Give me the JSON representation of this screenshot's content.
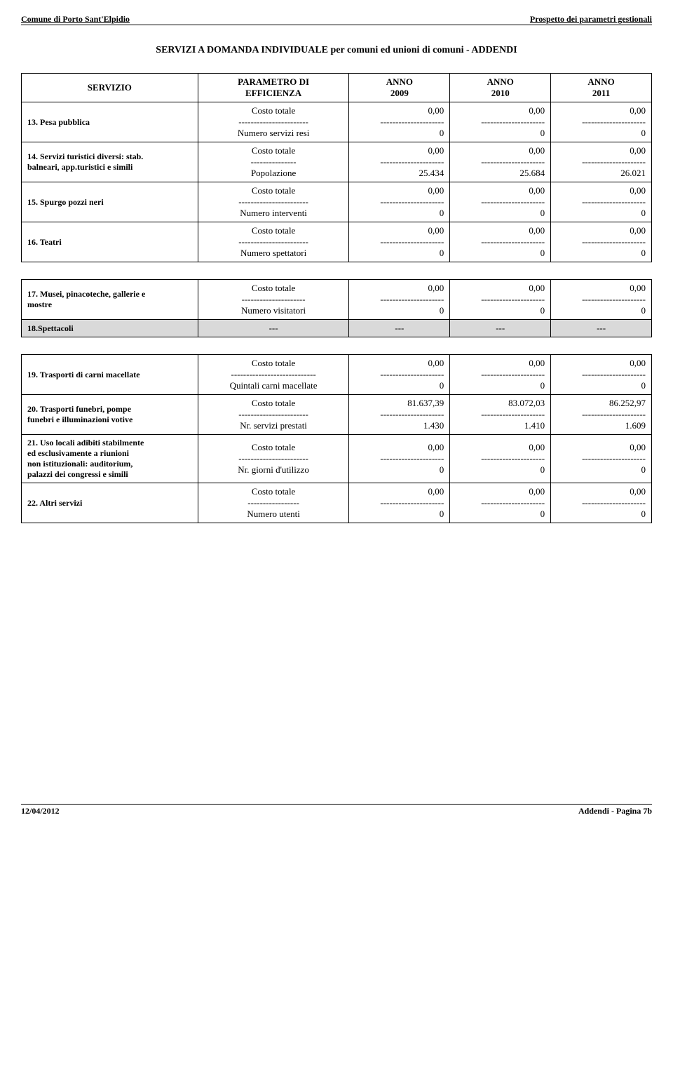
{
  "header": {
    "left": "Comune di Porto Sant'Elpidio",
    "right": "Prospetto dei parametri gestionali"
  },
  "title": "SERVIZI A DOMANDA INDIVIDUALE per comuni ed unioni di comuni - ADDENDI",
  "cols": {
    "servizio": "SERVIZIO",
    "parametro": "PARAMETRO DI\nEFFICIENZA",
    "y1": "ANNO\n2009",
    "y2": "ANNO\n2010",
    "y3": "ANNO\n2011"
  },
  "costo": "Costo totale",
  "dash_param_long": "-----------------------",
  "dash_param_short": "---------------",
  "dash_param_longer": "----------------------------",
  "dash_param_mid": "---------------------",
  "dash_param_17": "-----------------",
  "dash_val": "---------------------",
  "block1": [
    {
      "label": "13. Pesa pubblica",
      "denom": "Numero servizi resi",
      "sep": "-----------------------",
      "v": [
        "0,00",
        "0,00",
        "0,00"
      ],
      "d": [
        "0",
        "0",
        "0"
      ]
    },
    {
      "label": "14. Servizi turistici diversi: stab.\nbalneari, app.turistici e simili",
      "denom": "Popolazione",
      "sep": "---------------",
      "v": [
        "0,00",
        "0,00",
        "0,00"
      ],
      "d": [
        "25.434",
        "25.684",
        "26.021"
      ]
    },
    {
      "label": "15. Spurgo pozzi neri",
      "denom": "Numero interventi",
      "sep": "-----------------------",
      "v": [
        "0,00",
        "0,00",
        "0,00"
      ],
      "d": [
        "0",
        "0",
        "0"
      ]
    },
    {
      "label": "16. Teatri",
      "denom": "Numero spettatori",
      "sep": "-----------------------",
      "v": [
        "0,00",
        "0,00",
        "0,00"
      ],
      "d": [
        "0",
        "0",
        "0"
      ]
    }
  ],
  "block2": [
    {
      "label": "17. Musei, pinacoteche, gallerie e\nmostre",
      "denom": "Numero visitatori",
      "sep": "---------------------",
      "v": [
        "0,00",
        "0,00",
        "0,00"
      ],
      "d": [
        "0",
        "0",
        "0"
      ]
    }
  ],
  "spettacoli": {
    "label": "18.Spettacoli",
    "dash": "---"
  },
  "block3": [
    {
      "label": "19. Trasporti di carni macellate",
      "denom": "Quintali carni macellate",
      "sep": "----------------------------",
      "v": [
        "0,00",
        "0,00",
        "0,00"
      ],
      "d": [
        "0",
        "0",
        "0"
      ]
    },
    {
      "label": "20. Trasporti funebri, pompe\nfunebri e illuminazioni votive",
      "denom": "Nr. servizi prestati",
      "sep": "-----------------------",
      "v": [
        "81.637,39",
        "83.072,03",
        "86.252,97"
      ],
      "d": [
        "1.430",
        "1.410",
        "1.609"
      ]
    },
    {
      "label": "21. Uso locali adibiti stabilmente\ned esclusivamente a riunioni\nnon istituzionali: auditorium,\npalazzi dei congressi e simili",
      "denom": "Nr. giorni d'utilizzo",
      "sep": "-----------------------",
      "v": [
        "0,00",
        "0,00",
        "0,00"
      ],
      "d": [
        "0",
        "0",
        "0"
      ]
    },
    {
      "label": "22. Altri servizi",
      "denom": "Numero utenti",
      "sep": "-----------------",
      "v": [
        "0,00",
        "0,00",
        "0,00"
      ],
      "d": [
        "0",
        "0",
        "0"
      ]
    }
  ],
  "footer": {
    "left": "12/04/2012",
    "right": "Addendi - Pagina 7b"
  }
}
